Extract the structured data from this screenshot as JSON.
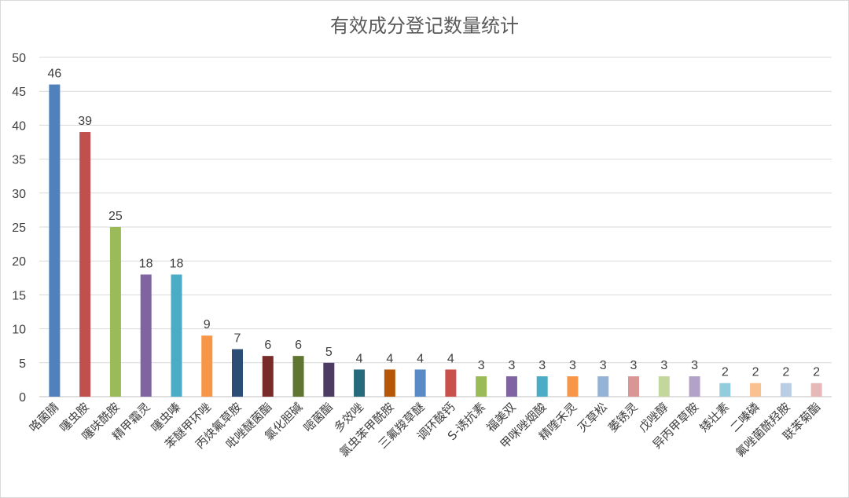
{
  "chart_data": {
    "type": "bar",
    "title": "有效成分登记数量统计",
    "xlabel": "",
    "ylabel": "",
    "ylim": [
      0,
      50
    ],
    "yticks": [
      0,
      5,
      10,
      15,
      20,
      25,
      30,
      35,
      40,
      45,
      50
    ],
    "grid": true,
    "legend": "none",
    "categories": [
      "咯菌腈",
      "噻虫胺",
      "噻呋酰胺",
      "精甲霜灵",
      "噻虫嗪",
      "苯醚甲环唑",
      "丙炔氟草胺",
      "吡唑醚菌酯",
      "氯化胆碱",
      "嘧菌酯",
      "多效唑",
      "氯虫苯甲酰胺",
      "三氟羧草醚",
      "调环酸钙",
      "S-诱抗素",
      "福美双",
      "甲咪唑烟酸",
      "精喹禾灵",
      "灭草松",
      "萎锈灵",
      "戊唑醇",
      "异丙甲草胺",
      "矮壮素",
      "二嗪磷",
      "氟唑菌酰羟胺",
      "联苯菊酯"
    ],
    "values": [
      46,
      39,
      25,
      18,
      18,
      9,
      7,
      6,
      6,
      5,
      4,
      4,
      4,
      4,
      3,
      3,
      3,
      3,
      3,
      3,
      3,
      3,
      2,
      2,
      2,
      2
    ],
    "colors": [
      "#4F81BD",
      "#C0504D",
      "#9BBB59",
      "#8064A2",
      "#4BACC6",
      "#F79646",
      "#2C4D75",
      "#772C2A",
      "#5F7530",
      "#4D3B62",
      "#276A7C",
      "#B65708",
      "#5A8AC6",
      "#C9504B",
      "#9BBB59",
      "#8064A2",
      "#4BACC6",
      "#F79646",
      "#95B3D7",
      "#D99694",
      "#C3D69B",
      "#B3A2C7",
      "#93CDDD",
      "#FAC090",
      "#B9CDE5",
      "#E6B9B8"
    ]
  }
}
